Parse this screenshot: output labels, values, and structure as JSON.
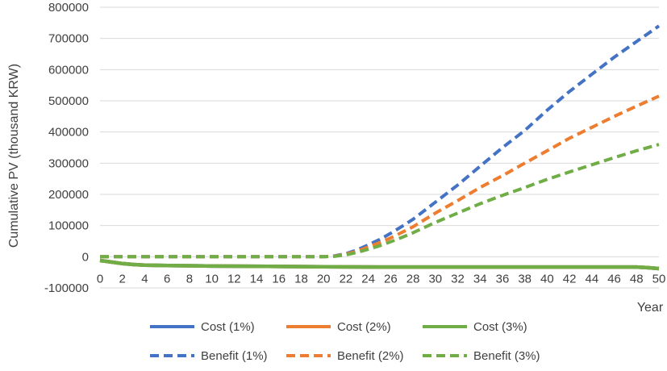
{
  "chart_data": {
    "type": "line",
    "title": "",
    "xlabel": "Year",
    "ylabel": "Cumulative PV (thousand KRW)",
    "xlim": [
      0,
      50
    ],
    "ylim": [
      -100000,
      800000
    ],
    "y_ticks": [
      -100000,
      0,
      100000,
      200000,
      300000,
      400000,
      500000,
      600000,
      700000,
      800000
    ],
    "x_ticks": [
      0,
      2,
      4,
      6,
      8,
      10,
      12,
      14,
      16,
      18,
      20,
      22,
      24,
      26,
      28,
      30,
      32,
      34,
      36,
      38,
      40,
      42,
      44,
      46,
      48,
      50
    ],
    "grid": "horizontal",
    "legend_position": "bottom",
    "series": [
      {
        "name": "Cost (1%)",
        "style": "solid",
        "color": "#4472c4",
        "x": [
          0,
          1,
          2,
          3,
          4,
          6,
          8,
          10,
          15,
          20,
          25,
          30,
          35,
          40,
          45,
          48,
          49,
          50
        ],
        "y": [
          -12000,
          -17000,
          -22000,
          -25000,
          -27000,
          -28000,
          -29000,
          -30000,
          -31000,
          -32000,
          -33000,
          -33000,
          -33000,
          -33000,
          -33000,
          -33000,
          -35000,
          -38000
        ]
      },
      {
        "name": "Cost (2%)",
        "style": "solid",
        "color": "#ed7d31",
        "x": [
          0,
          1,
          2,
          3,
          4,
          6,
          8,
          10,
          15,
          20,
          25,
          30,
          35,
          40,
          45,
          48,
          49,
          50
        ],
        "y": [
          -12000,
          -17000,
          -22000,
          -25000,
          -27000,
          -28000,
          -29000,
          -30000,
          -31000,
          -32000,
          -33000,
          -33000,
          -33000,
          -33000,
          -33000,
          -33000,
          -35000,
          -38000
        ]
      },
      {
        "name": "Cost (3%)",
        "style": "solid",
        "color": "#70ad47",
        "x": [
          0,
          1,
          2,
          3,
          4,
          6,
          8,
          10,
          15,
          20,
          25,
          30,
          35,
          40,
          45,
          48,
          49,
          50
        ],
        "y": [
          -12000,
          -17000,
          -22000,
          -25000,
          -27000,
          -28000,
          -29000,
          -30000,
          -31000,
          -32000,
          -33000,
          -33000,
          -33000,
          -33000,
          -33000,
          -33000,
          -35000,
          -38000
        ]
      },
      {
        "name": "Benefit (1%)",
        "style": "dashed",
        "color": "#4472c4",
        "x": [
          0,
          5,
          10,
          15,
          20,
          21,
          22,
          23,
          24,
          25,
          26,
          27,
          28,
          30,
          32,
          34,
          36,
          38,
          40,
          42,
          44,
          46,
          48,
          50
        ],
        "y": [
          0,
          0,
          0,
          0,
          0,
          3000,
          10000,
          22000,
          38000,
          55000,
          75000,
          97000,
          120000,
          175000,
          230000,
          290000,
          350000,
          405000,
          470000,
          530000,
          585000,
          640000,
          690000,
          740000
        ]
      },
      {
        "name": "Benefit (2%)",
        "style": "dashed",
        "color": "#ed7d31",
        "x": [
          0,
          5,
          10,
          15,
          20,
          21,
          22,
          23,
          24,
          25,
          26,
          27,
          28,
          30,
          32,
          34,
          36,
          38,
          40,
          42,
          44,
          46,
          48,
          50
        ],
        "y": [
          0,
          0,
          0,
          0,
          0,
          2000,
          8000,
          18000,
          31000,
          45000,
          60000,
          78000,
          96000,
          140000,
          180000,
          222000,
          260000,
          300000,
          340000,
          380000,
          415000,
          450000,
          483000,
          515000
        ]
      },
      {
        "name": "Benefit (3%)",
        "style": "dashed",
        "color": "#70ad47",
        "x": [
          0,
          5,
          10,
          15,
          20,
          21,
          22,
          23,
          24,
          25,
          26,
          27,
          28,
          30,
          32,
          34,
          36,
          38,
          40,
          42,
          44,
          46,
          48,
          50
        ],
        "y": [
          0,
          0,
          0,
          0,
          0,
          1500,
          6000,
          14000,
          24000,
          35000,
          48000,
          62000,
          77000,
          110000,
          140000,
          170000,
          197000,
          222000,
          248000,
          272000,
          295000,
          318000,
          340000,
          360000
        ]
      }
    ]
  }
}
